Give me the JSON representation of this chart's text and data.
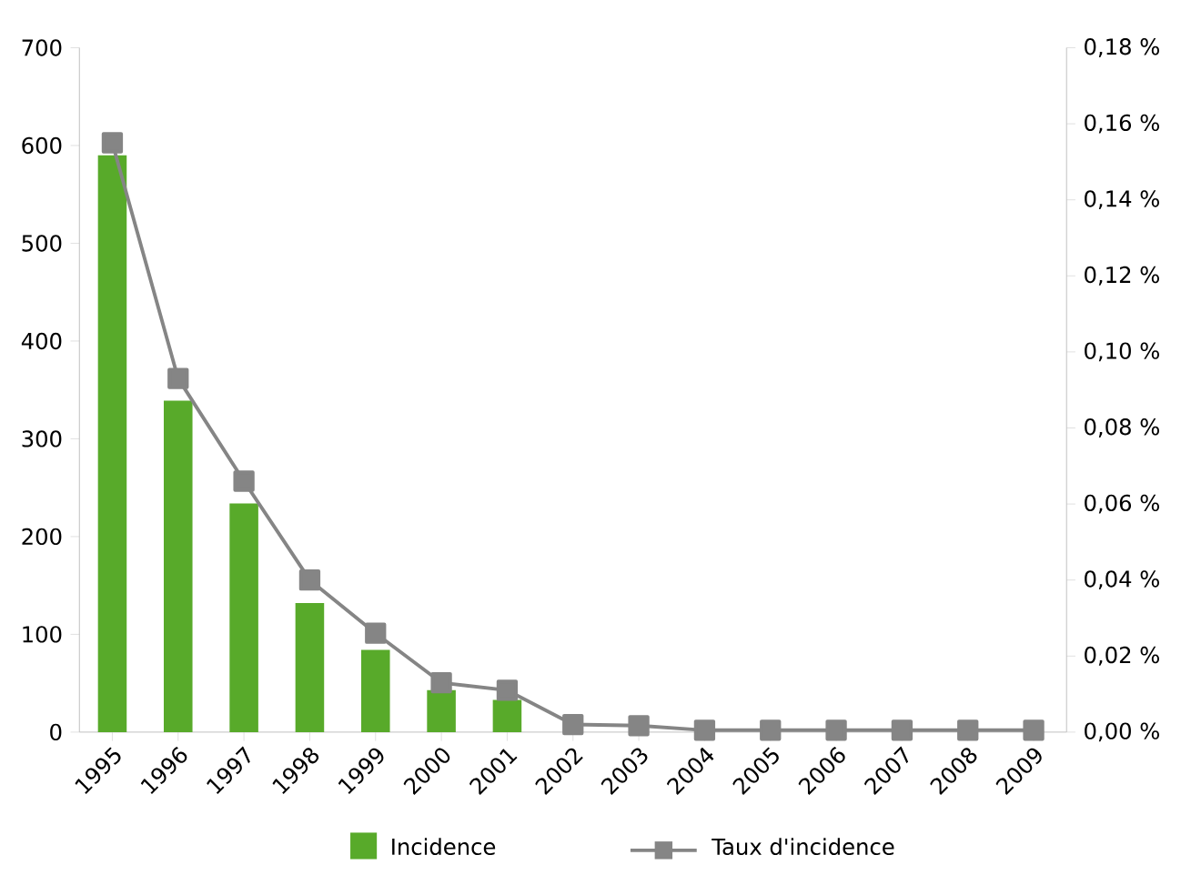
{
  "chart_data": {
    "type": "bar",
    "categories": [
      "1995",
      "1996",
      "1997",
      "1998",
      "1999",
      "2000",
      "2001",
      "2002",
      "2003",
      "2004",
      "2005",
      "2006",
      "2007",
      "2008",
      "2009"
    ],
    "series": [
      {
        "name": "Incidence",
        "color": "#58aa2a",
        "values": [
          590,
          339,
          234,
          132,
          84,
          43,
          33,
          null,
          null,
          0,
          0,
          0,
          0,
          0,
          0
        ]
      },
      {
        "name": "Taux d'incidence",
        "type": "line",
        "axis": "y2",
        "color": "#858585",
        "marker": "square",
        "values": [
          0.155,
          0.093,
          0.066,
          0.04,
          0.026,
          0.013,
          0.011,
          0.002,
          0.0017,
          0.0005,
          0.0005,
          0.0005,
          0.0005,
          0.0005,
          0.0005
        ]
      }
    ],
    "ylim": [
      0,
      700
    ],
    "yticks": [
      0,
      100,
      200,
      300,
      400,
      500,
      600,
      700
    ],
    "y2lim": [
      0,
      0.18
    ],
    "y2ticks": [
      {
        "value": 0,
        "label": "0,00 %"
      },
      {
        "value": 0.02,
        "label": "0,02 %"
      },
      {
        "value": 0.04,
        "label": "0,04 %"
      },
      {
        "value": 0.06,
        "label": "0,06 %"
      },
      {
        "value": 0.08,
        "label": "0,08 %"
      },
      {
        "value": 0.1,
        "label": "0,10 %"
      },
      {
        "value": 0.12,
        "label": "0,12 %"
      },
      {
        "value": 0.14,
        "label": "0,14 %"
      },
      {
        "value": 0.16,
        "label": "0,16 %"
      },
      {
        "value": 0.18,
        "label": "0,18 %"
      }
    ],
    "legend": "bottom",
    "grid": false
  }
}
